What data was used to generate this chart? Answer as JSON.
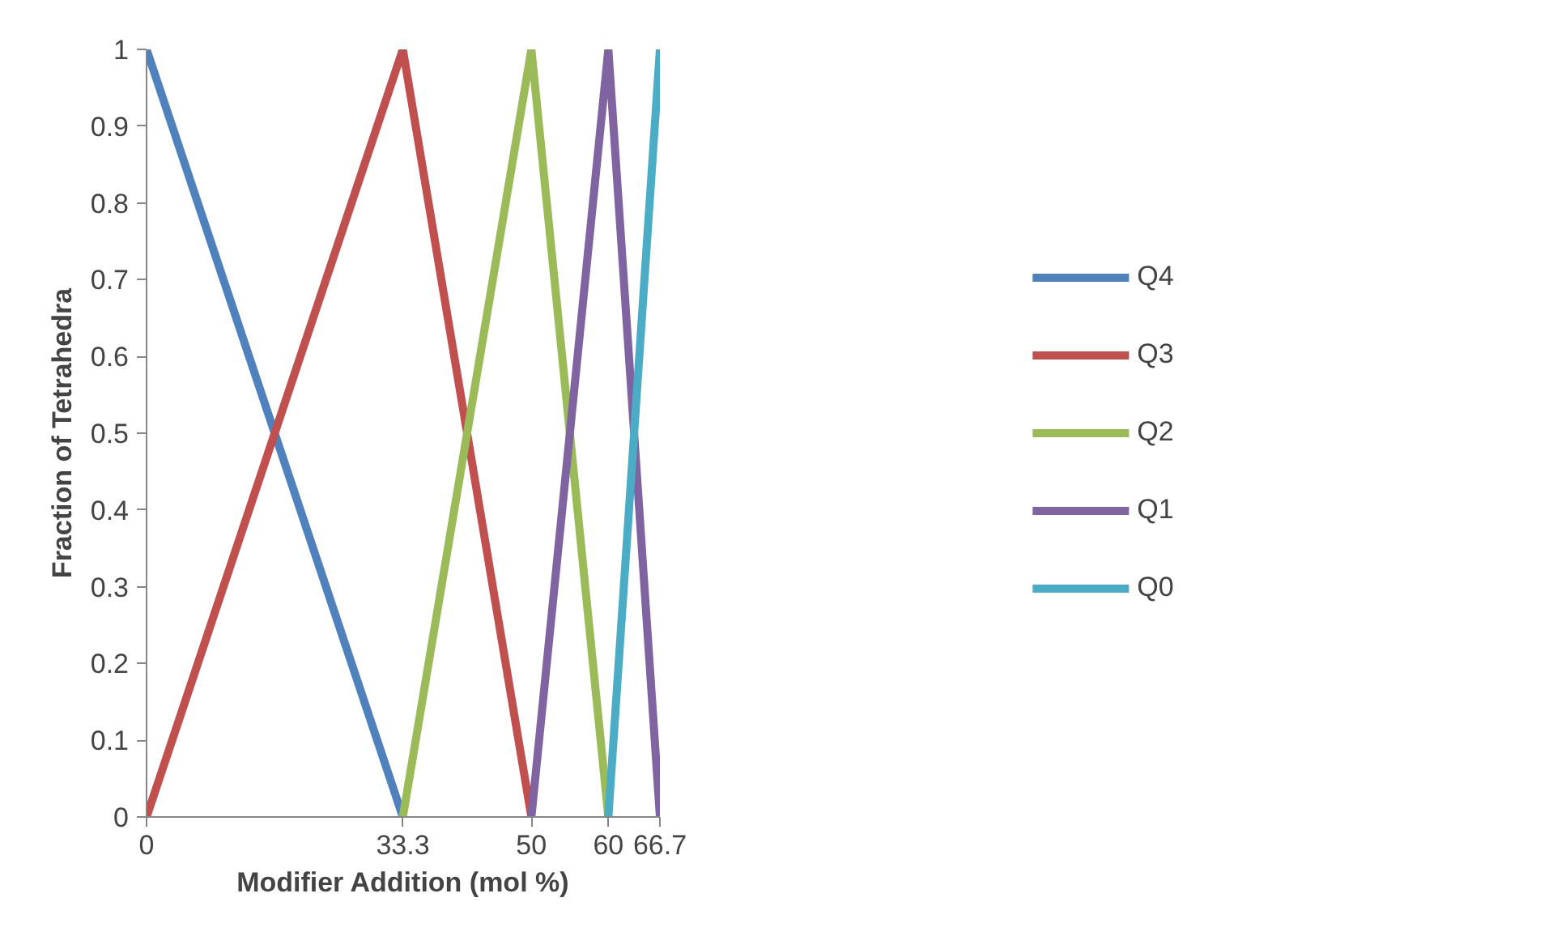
{
  "chart_data": {
    "type": "line",
    "xlabel": "Modifier Addition (mol %)",
    "ylabel": "Fraction of Tetrahedra",
    "xlim": [
      0,
      66.7
    ],
    "xticks": [
      0,
      33.3,
      50,
      60,
      66.7
    ],
    "ylim": [
      0,
      1
    ],
    "yticks": [
      0,
      0.1,
      0.2,
      0.3,
      0.4,
      0.5,
      0.6,
      0.7,
      0.8,
      0.9,
      1
    ],
    "grid": false,
    "legend": "right",
    "marker": "none",
    "line_style": "solid",
    "series": [
      {
        "name": "Q4",
        "color": "#4f81bd",
        "x": [
          0,
          33.3
        ],
        "values": [
          1,
          0
        ]
      },
      {
        "name": "Q3",
        "color": "#c0504d",
        "x": [
          0,
          33.3,
          50
        ],
        "values": [
          0,
          1,
          0
        ]
      },
      {
        "name": "Q2",
        "color": "#9bbb59",
        "x": [
          33.3,
          50,
          60
        ],
        "values": [
          0,
          1,
          0
        ]
      },
      {
        "name": "Q1",
        "color": "#8064a2",
        "x": [
          50,
          60,
          66.7
        ],
        "values": [
          0,
          1,
          0
        ]
      },
      {
        "name": "Q0",
        "color": "#4bacc6",
        "x": [
          60,
          66.7
        ],
        "values": [
          0,
          1
        ]
      }
    ]
  }
}
